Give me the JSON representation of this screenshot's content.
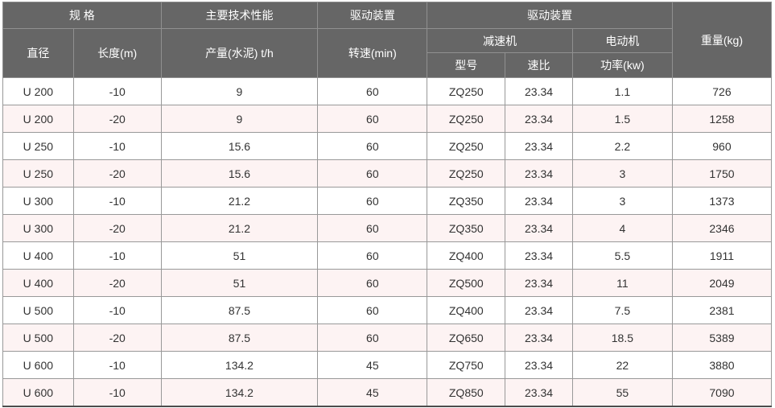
{
  "table": {
    "header": {
      "spec_group": "规 格",
      "performance_group": "主要技术性能",
      "drive_group_1": "驱动装置",
      "drive_group_2": "驱动装置",
      "weight": "重量(kg)",
      "diameter": "直径",
      "length": "长度(m)",
      "output": "产量(水泥) t/h",
      "speed": "转速(min)",
      "reducer": "减速机",
      "motor": "电动机",
      "model": "型号",
      "ratio": "速比",
      "power": "功率(kw)"
    },
    "column_keys": [
      "diameter",
      "length",
      "output",
      "speed",
      "model",
      "ratio",
      "power",
      "weight"
    ],
    "rows": [
      [
        "U 200",
        "-10",
        "9",
        "60",
        "ZQ250",
        "23.34",
        "1.1",
        "726"
      ],
      [
        "U 200",
        "-20",
        "9",
        "60",
        "ZQ250",
        "23.34",
        "1.5",
        "1258"
      ],
      [
        "U 250",
        "-10",
        "15.6",
        "60",
        "ZQ250",
        "23.34",
        "2.2",
        "960"
      ],
      [
        "U 250",
        "-20",
        "15.6",
        "60",
        "ZQ250",
        "23.34",
        "3",
        "1750"
      ],
      [
        "U 300",
        "-10",
        "21.2",
        "60",
        "ZQ350",
        "23.34",
        "3",
        "1373"
      ],
      [
        "U 300",
        "-20",
        "21.2",
        "60",
        "ZQ350",
        "23.34",
        "4",
        "2346"
      ],
      [
        "U 400",
        "-10",
        "51",
        "60",
        "ZQ400",
        "23.34",
        "5.5",
        "1911"
      ],
      [
        "U 400",
        "-20",
        "51",
        "60",
        "ZQ500",
        "23.34",
        "11",
        "2049"
      ],
      [
        "U 500",
        "-10",
        "87.5",
        "60",
        "ZQ400",
        "23.34",
        "7.5",
        "2381"
      ],
      [
        "U 500",
        "-20",
        "87.5",
        "60",
        "ZQ650",
        "23.34",
        "18.5",
        "5389"
      ],
      [
        "U 600",
        "-10",
        "134.2",
        "45",
        "ZQ750",
        "23.34",
        "22",
        "3880"
      ],
      [
        "U 600",
        "-10",
        "134.2",
        "45",
        "ZQ850",
        "23.34",
        "55",
        "7090"
      ]
    ],
    "colors": {
      "header_bg": "#666666",
      "header_text": "#ffffff",
      "header_border": "#909090",
      "body_border": "#999999",
      "row_bg": "#ffffff",
      "row_alt_bg": "#fdf3f3",
      "body_text": "#333333",
      "outer_bottom_border": "#4c4c4c"
    }
  }
}
